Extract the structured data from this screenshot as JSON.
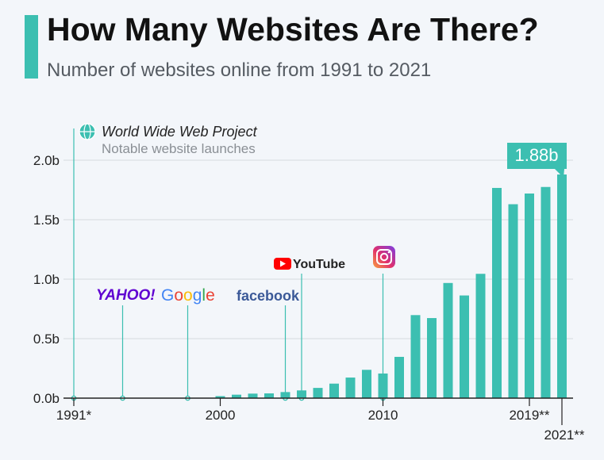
{
  "header": {
    "title": "How Many Websites Are There?",
    "subtitle": "Number of websites online from 1991 to 2021"
  },
  "colors": {
    "accent": "#3cbfb1",
    "bar": "#3cbfb1",
    "grid": "#d4d9de",
    "text": "#222222"
  },
  "callout": {
    "title": "World Wide Web Project",
    "subtitle": "Notable website launches",
    "icon": "globe-icon"
  },
  "milestones": [
    {
      "name": "YAHOO!",
      "year": 1994,
      "icon": "yahoo-logo"
    },
    {
      "name": "Google",
      "year": 1998,
      "icon": "google-logo"
    },
    {
      "name": "facebook",
      "year": 2004,
      "icon": "facebook-logo"
    },
    {
      "name": "YouTube",
      "year": 2005,
      "icon": "youtube-logo"
    },
    {
      "name": "Instagram",
      "year": 2010,
      "icon": "instagram-icon"
    }
  ],
  "chart_data": {
    "type": "bar",
    "x": [
      1991,
      1992,
      1993,
      1994,
      1995,
      1996,
      1997,
      1998,
      1999,
      2000,
      2001,
      2002,
      2003,
      2004,
      2005,
      2006,
      2007,
      2008,
      2009,
      2010,
      2011,
      2012,
      2013,
      2014,
      2015,
      2016,
      2017,
      2018,
      2019,
      2020,
      2021
    ],
    "values": [
      1e-06,
      1e-05,
      0.0001,
      0.003,
      0.023,
      0.26,
      1.1,
      2.4,
      3.2,
      17,
      29,
      38,
      40,
      51,
      65,
      86,
      122,
      173,
      238,
      207,
      347,
      698,
      673,
      968,
      863,
      1045,
      1767,
      1630,
      1720,
      1775,
      1880
    ],
    "unit": "millions",
    "ylim": [
      0,
      2000
    ],
    "ytick_labels": [
      "0.0b",
      "0.5b",
      "1.0b",
      "1.5b",
      "2.0b"
    ],
    "ytick_values": [
      0,
      500,
      1000,
      1500,
      2000
    ],
    "xtick_labels": [
      "1991*",
      "2000",
      "2010",
      "2019**",
      "2021**"
    ],
    "xtick_years": [
      1991,
      2000,
      2010,
      2019,
      2021
    ],
    "highlight": {
      "year": 2021,
      "label": "1.88b"
    },
    "grid": true
  }
}
